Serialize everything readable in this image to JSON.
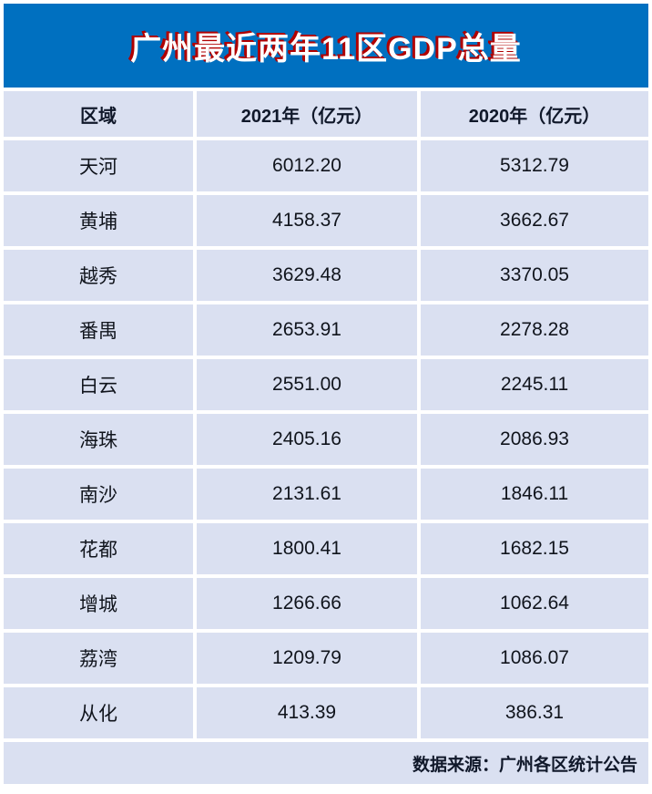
{
  "banner": {
    "title": "广州最近两年11区GDP总量",
    "bg_color": "#0070c0",
    "title_color": "#ffffff",
    "title_shadow_color": "#b00000"
  },
  "table": {
    "columns": [
      "区域",
      "2021年（亿元）",
      "2020年（亿元）"
    ],
    "rows": [
      {
        "region": "天河",
        "y2021": "6012.20",
        "y2020": "5312.79"
      },
      {
        "region": "黄埔",
        "y2021": "4158.37",
        "y2020": "3662.67"
      },
      {
        "region": "越秀",
        "y2021": "3629.48",
        "y2020": "3370.05"
      },
      {
        "region": "番禺",
        "y2021": "2653.91",
        "y2020": "2278.28"
      },
      {
        "region": "白云",
        "y2021": "2551.00",
        "y2020": "2245.11"
      },
      {
        "region": "海珠",
        "y2021": "2405.16",
        "y2020": "2086.93"
      },
      {
        "region": "南沙",
        "y2021": "2131.61",
        "y2020": "1846.11"
      },
      {
        "region": "花都",
        "y2021": "1800.41",
        "y2020": "1682.15"
      },
      {
        "region": "增城",
        "y2021": "1266.66",
        "y2020": "1062.64"
      },
      {
        "region": "荔湾",
        "y2021": "1209.79",
        "y2020": "1086.07"
      },
      {
        "region": "从化",
        "y2021": "413.39",
        "y2020": "386.31"
      }
    ],
    "cell_bg_color": "#dae0f1",
    "text_color": "#10141c"
  },
  "footer": {
    "source": "数据来源：广州各区统计公告"
  },
  "chart_data": {
    "type": "table",
    "title": "广州最近两年11区GDP总量",
    "categories": [
      "天河",
      "黄埔",
      "越秀",
      "番禺",
      "白云",
      "海珠",
      "南沙",
      "花都",
      "增城",
      "荔湾",
      "从化"
    ],
    "series": [
      {
        "name": "2021年（亿元）",
        "values": [
          6012.2,
          4158.37,
          3629.48,
          2653.91,
          2551.0,
          2405.16,
          2131.61,
          1800.41,
          1266.66,
          1209.79,
          413.39
        ]
      },
      {
        "name": "2020年（亿元）",
        "values": [
          5312.79,
          3662.67,
          3370.05,
          2278.28,
          2245.11,
          2086.93,
          1846.11,
          1682.15,
          1062.64,
          1086.07,
          386.31
        ]
      }
    ],
    "source_note": "数据来源：广州各区统计公告"
  }
}
